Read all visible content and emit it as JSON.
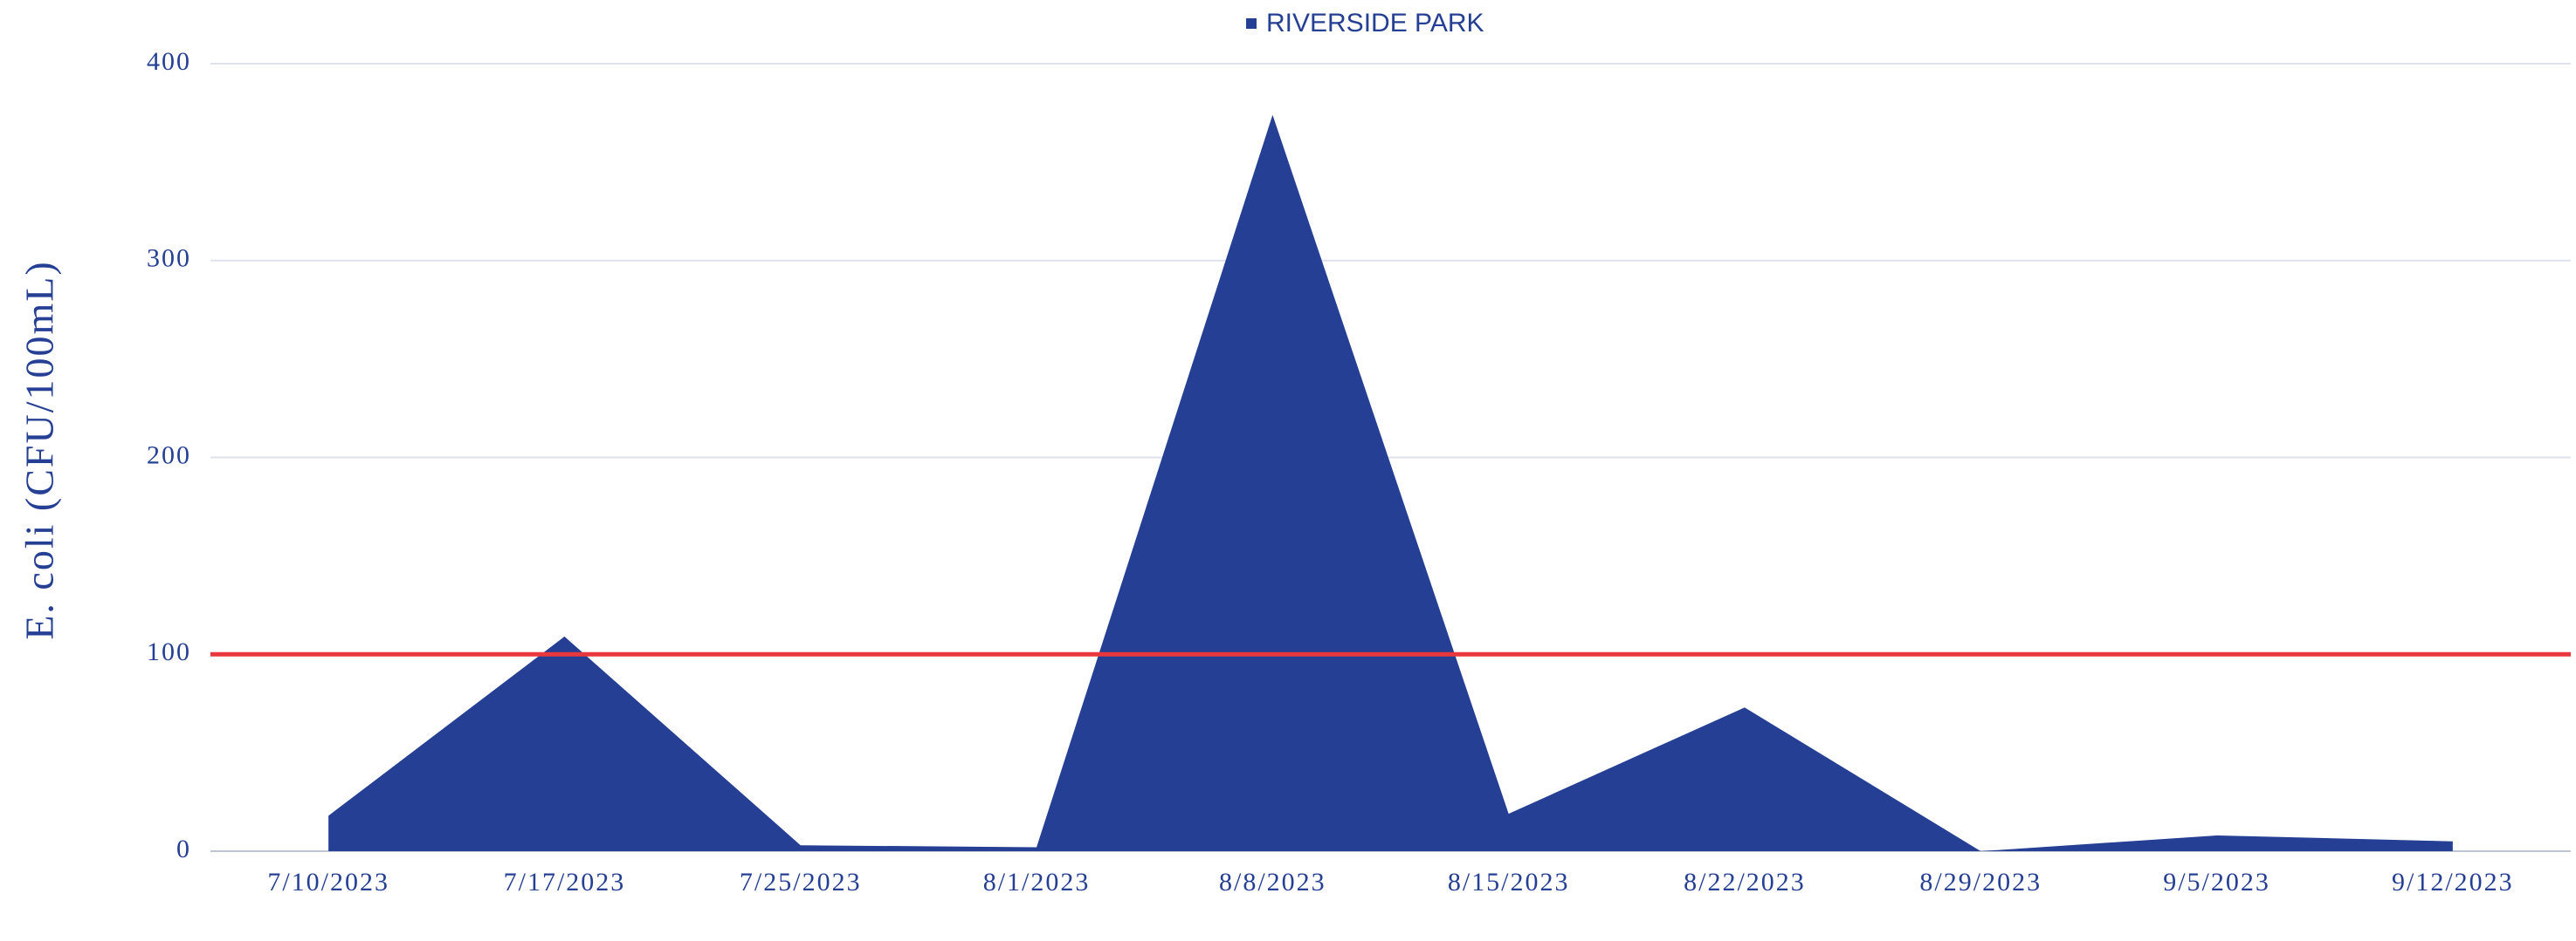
{
  "chart_data": {
    "type": "area",
    "y_axis_label": "E. coli (CFU/100mL)",
    "categories": [
      "7/10/2023",
      "7/17/2023",
      "7/25/2023",
      "8/1/2023",
      "8/8/2023",
      "8/15/2023",
      "8/22/2023",
      "8/29/2023",
      "9/5/2023",
      "9/12/2023"
    ],
    "series": [
      {
        "name": "RIVERSIDE PARK",
        "color": "#243f93",
        "values": [
          18,
          109,
          3,
          2,
          374,
          19,
          73,
          0,
          8,
          5
        ]
      }
    ],
    "reference_line": {
      "value": 100,
      "color": "#e8383d"
    },
    "ylim": [
      0,
      400
    ],
    "yticks": [
      0,
      100,
      200,
      300,
      400
    ],
    "grid": true,
    "legend": "top"
  }
}
